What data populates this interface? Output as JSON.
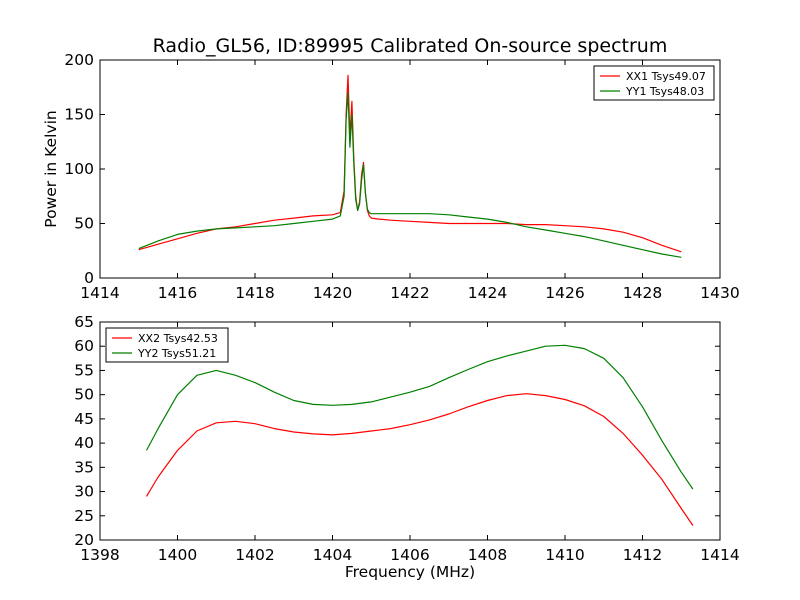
{
  "chart_data": [
    {
      "type": "line",
      "title": "Radio_GL56, ID:89995 Calibrated On-source spectrum",
      "xlabel": "",
      "ylabel": "Power in Kelvin",
      "xlim": [
        1414,
        1430
      ],
      "ylim": [
        0,
        200
      ],
      "xticks": [
        1414,
        1416,
        1418,
        1420,
        1422,
        1424,
        1426,
        1428,
        1430
      ],
      "yticks": [
        0,
        50,
        100,
        150,
        200
      ],
      "grid": false,
      "legend": "top-right",
      "series": [
        {
          "name": "XX1 Tsys49.07",
          "color": "#ff0000",
          "x": [
            1415.0,
            1415.5,
            1416.0,
            1416.5,
            1417.0,
            1417.5,
            1418.0,
            1418.5,
            1419.0,
            1419.5,
            1420.0,
            1420.2,
            1420.3,
            1420.35,
            1420.4,
            1420.45,
            1420.5,
            1420.55,
            1420.6,
            1420.65,
            1420.7,
            1420.75,
            1420.8,
            1420.85,
            1420.9,
            1420.95,
            1421.0,
            1421.2,
            1421.5,
            1422.0,
            1422.5,
            1423.0,
            1423.5,
            1424.0,
            1424.5,
            1425.0,
            1425.5,
            1426.0,
            1426.5,
            1427.0,
            1427.5,
            1428.0,
            1428.5,
            1429.0
          ],
          "values": [
            26,
            31,
            36,
            41,
            45,
            47,
            50,
            53,
            55,
            57,
            58,
            60,
            80,
            150,
            186,
            130,
            162,
            110,
            75,
            62,
            70,
            95,
            106,
            78,
            62,
            57,
            55,
            54,
            53,
            52,
            51,
            50,
            50,
            50,
            50,
            49,
            49,
            48,
            47,
            45,
            42,
            37,
            30,
            24
          ]
        },
        {
          "name": "YY1 Tsys48.03",
          "color": "#008000",
          "x": [
            1415.0,
            1415.5,
            1416.0,
            1416.5,
            1417.0,
            1417.5,
            1418.0,
            1418.5,
            1419.0,
            1419.5,
            1420.0,
            1420.2,
            1420.3,
            1420.35,
            1420.4,
            1420.45,
            1420.5,
            1420.55,
            1420.6,
            1420.65,
            1420.7,
            1420.75,
            1420.8,
            1420.85,
            1420.9,
            1420.95,
            1421.0,
            1421.2,
            1421.5,
            1422.0,
            1422.5,
            1423.0,
            1423.5,
            1424.0,
            1424.5,
            1425.0,
            1425.5,
            1426.0,
            1426.5,
            1427.0,
            1427.5,
            1428.0,
            1428.5,
            1429.0
          ],
          "values": [
            27,
            34,
            40,
            43,
            45,
            46,
            47,
            48,
            50,
            52,
            54,
            57,
            75,
            145,
            170,
            120,
            150,
            105,
            72,
            62,
            68,
            90,
            104,
            78,
            63,
            60,
            59,
            59,
            59,
            59,
            59,
            58,
            56,
            54,
            51,
            47,
            44,
            41,
            38,
            34,
            30,
            26,
            22,
            19
          ]
        }
      ]
    },
    {
      "type": "line",
      "title": "",
      "xlabel": "Frequency (MHz)",
      "ylabel": "",
      "xlim": [
        1398,
        1414
      ],
      "ylim": [
        20,
        65
      ],
      "xticks": [
        1398,
        1400,
        1402,
        1404,
        1406,
        1408,
        1410,
        1412,
        1414
      ],
      "yticks": [
        20,
        25,
        30,
        35,
        40,
        45,
        50,
        55,
        60,
        65
      ],
      "grid": false,
      "legend": "top-left",
      "series": [
        {
          "name": "XX2 Tsys42.53",
          "color": "#ff0000",
          "x": [
            1399.2,
            1399.5,
            1400.0,
            1400.5,
            1401.0,
            1401.5,
            1402.0,
            1402.5,
            1403.0,
            1403.5,
            1404.0,
            1404.5,
            1405.0,
            1405.5,
            1406.0,
            1406.5,
            1407.0,
            1407.5,
            1408.0,
            1408.5,
            1409.0,
            1409.5,
            1410.0,
            1410.5,
            1411.0,
            1411.5,
            1412.0,
            1412.5,
            1413.0,
            1413.3
          ],
          "values": [
            29,
            33,
            38.5,
            42.5,
            44.2,
            44.5,
            44,
            43,
            42.3,
            41.9,
            41.7,
            42,
            42.5,
            43,
            43.8,
            44.8,
            46,
            47.5,
            48.8,
            49.8,
            50.2,
            49.8,
            49,
            47.7,
            45.5,
            42,
            37.5,
            32.5,
            26.5,
            23
          ]
        },
        {
          "name": "YY2 Tsys51.21",
          "color": "#008000",
          "x": [
            1399.2,
            1399.5,
            1400.0,
            1400.5,
            1401.0,
            1401.5,
            1402.0,
            1402.5,
            1403.0,
            1403.5,
            1404.0,
            1404.5,
            1405.0,
            1405.5,
            1406.0,
            1406.5,
            1407.0,
            1407.5,
            1408.0,
            1408.5,
            1409.0,
            1409.5,
            1410.0,
            1410.5,
            1411.0,
            1411.5,
            1412.0,
            1412.5,
            1413.0,
            1413.3
          ],
          "values": [
            38.5,
            43,
            50,
            54,
            55,
            54,
            52.5,
            50.5,
            48.8,
            48,
            47.8,
            48,
            48.5,
            49.5,
            50.5,
            51.7,
            53.5,
            55.2,
            56.8,
            58,
            59,
            60,
            60.2,
            59.5,
            57.5,
            53.5,
            47.5,
            40.5,
            34,
            30.5
          ]
        }
      ]
    }
  ]
}
